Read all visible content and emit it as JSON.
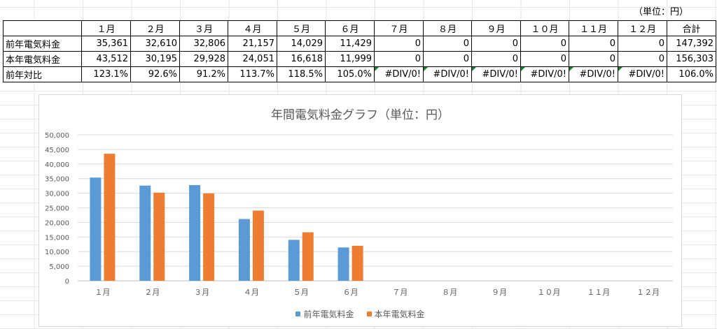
{
  "unit_note": "（単位：円）",
  "table": {
    "header": [
      "",
      "１月",
      "２月",
      "３月",
      "４月",
      "５月",
      "６月",
      "７月",
      "８月",
      "９月",
      "１０月",
      "１１月",
      "１２月",
      "合計"
    ],
    "rows": [
      {
        "label": "前年電気料金",
        "cells": [
          "35,361",
          "32,610",
          "32,806",
          "21,157",
          "14,029",
          "11,429",
          "0",
          "0",
          "0",
          "0",
          "0",
          "0",
          "147,392"
        ]
      },
      {
        "label": "本年電気料金",
        "cells": [
          "43,512",
          "30,195",
          "29,928",
          "24,051",
          "16,618",
          "11,999",
          "0",
          "0",
          "0",
          "0",
          "0",
          "0",
          "156,303"
        ]
      },
      {
        "label": "前年対比",
        "cells": [
          "123.1%",
          "92.6%",
          "91.2%",
          "113.7%",
          "118.5%",
          "105.0%",
          "#DIV/0!",
          "#DIV/0!",
          "#DIV/0!",
          "#DIV/0!",
          "#DIV/0!",
          "#DIV/0!",
          "106.0%"
        ]
      }
    ]
  },
  "chart_data": {
    "type": "bar",
    "title": "年間電気料金グラフ（単位：円）",
    "categories": [
      "１月",
      "２月",
      "３月",
      "４月",
      "５月",
      "６月",
      "７月",
      "８月",
      "９月",
      "１０月",
      "１１月",
      "１２月"
    ],
    "series": [
      {
        "name": "前年電気料金",
        "color": "#5B9BD5",
        "values": [
          35361,
          32610,
          32806,
          21157,
          14029,
          11429,
          0,
          0,
          0,
          0,
          0,
          0
        ]
      },
      {
        "name": "本年電気料金",
        "color": "#ED7D31",
        "values": [
          43512,
          30195,
          29928,
          24051,
          16618,
          11999,
          0,
          0,
          0,
          0,
          0,
          0
        ]
      }
    ],
    "ylim": [
      0,
      50000
    ],
    "yticks": [
      "0",
      "5,000",
      "10,000",
      "15,000",
      "20,000",
      "25,000",
      "30,000",
      "35,000",
      "40,000",
      "45,000",
      "50,000"
    ],
    "grid": true,
    "legend_position": "bottom"
  }
}
